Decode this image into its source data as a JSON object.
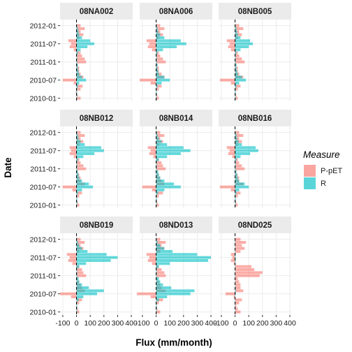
{
  "chart_data": {
    "type": "bar",
    "orientation": "horizontal",
    "facet_layout": "3x3",
    "xlabel": "Flux (mm/month)",
    "ylabel": "Date",
    "xlim": [
      -120,
      410
    ],
    "x_ticks": [
      -100,
      0,
      100,
      200,
      300,
      400
    ],
    "x_tick_labels": [
      "-100",
      "0",
      "100",
      "200",
      "300",
      "400"
    ],
    "ylim": [
      "2009-12",
      "2012-03"
    ],
    "y_ticks": [
      "2010-01",
      "2010-07",
      "2011-01",
      "2011-07",
      "2012-01"
    ],
    "y_tick_labels": [
      "2010-01",
      "2010-07",
      "2011-01",
      "2011-07",
      "2012-01"
    ],
    "vline_x": 0,
    "months": [
      "2010-01",
      "2010-02",
      "2010-03",
      "2010-04",
      "2010-05",
      "2010-06",
      "2010-07",
      "2010-08",
      "2010-09",
      "2010-10",
      "2010-11",
      "2010-12",
      "2011-01",
      "2011-02",
      "2011-03",
      "2011-04",
      "2011-05",
      "2011-06",
      "2011-07",
      "2011-08",
      "2011-09",
      "2011-10",
      "2011-11",
      "2011-12",
      "2012-01"
    ],
    "legend": {
      "title": "Measure",
      "position": "right",
      "entries": [
        {
          "name": "P-pET",
          "color": "#F8766D"
        },
        {
          "name": "R",
          "color": "#00BFC4"
        }
      ]
    },
    "grid": true,
    "panels": [
      {
        "name": "08NA002",
        "P-pET": [
          30,
          10,
          -5,
          30,
          45,
          -20,
          -100,
          50,
          30,
          20,
          20,
          10,
          70,
          60,
          40,
          30,
          -20,
          -50,
          -40,
          -60,
          20,
          50,
          30,
          60,
          30
        ],
        "R": [
          5,
          5,
          5,
          5,
          10,
          20,
          70,
          40,
          20,
          15,
          10,
          10,
          5,
          5,
          5,
          10,
          30,
          80,
          130,
          100,
          40,
          20,
          15,
          10,
          5
        ]
      },
      {
        "name": "08NA006",
        "P-pET": [
          20,
          10,
          0,
          20,
          40,
          -40,
          -120,
          60,
          40,
          20,
          20,
          10,
          70,
          50,
          30,
          20,
          -30,
          -60,
          -50,
          -70,
          20,
          50,
          30,
          60,
          30
        ],
        "R": [
          5,
          5,
          5,
          5,
          10,
          40,
          100,
          60,
          20,
          15,
          10,
          10,
          5,
          5,
          5,
          10,
          50,
          150,
          220,
          180,
          60,
          30,
          15,
          10,
          5
        ]
      },
      {
        "name": "08NB005",
        "P-pET": [
          20,
          10,
          0,
          20,
          40,
          -30,
          -110,
          60,
          30,
          20,
          20,
          10,
          70,
          50,
          30,
          20,
          -30,
          -50,
          -40,
          -60,
          20,
          50,
          30,
          60,
          30
        ],
        "R": [
          5,
          5,
          5,
          5,
          10,
          30,
          80,
          50,
          20,
          15,
          10,
          10,
          5,
          5,
          5,
          10,
          40,
          100,
          130,
          110,
          40,
          20,
          15,
          10,
          5
        ]
      },
      {
        "name": "08NB012",
        "P-pET": [
          20,
          10,
          0,
          20,
          40,
          -30,
          -100,
          60,
          30,
          30,
          20,
          10,
          70,
          50,
          30,
          20,
          -20,
          -50,
          -40,
          -50,
          20,
          50,
          30,
          60,
          30
        ],
        "R": [
          5,
          5,
          5,
          5,
          10,
          40,
          120,
          90,
          40,
          20,
          15,
          10,
          5,
          5,
          5,
          10,
          50,
          130,
          200,
          180,
          60,
          30,
          15,
          10,
          5
        ]
      },
      {
        "name": "08NB014",
        "P-pET": [
          20,
          10,
          0,
          20,
          50,
          -30,
          -100,
          60,
          40,
          30,
          20,
          10,
          70,
          50,
          40,
          20,
          -20,
          -50,
          -40,
          -60,
          20,
          50,
          30,
          60,
          30
        ],
        "R": [
          5,
          5,
          5,
          5,
          15,
          60,
          180,
          130,
          60,
          30,
          20,
          15,
          5,
          5,
          5,
          20,
          80,
          180,
          250,
          200,
          80,
          40,
          20,
          10,
          5
        ]
      },
      {
        "name": "08NB016",
        "P-pET": [
          20,
          10,
          0,
          20,
          40,
          -30,
          -110,
          60,
          30,
          30,
          20,
          10,
          70,
          50,
          30,
          20,
          -20,
          -50,
          -40,
          -60,
          20,
          50,
          30,
          60,
          30
        ],
        "R": [
          5,
          5,
          5,
          5,
          10,
          30,
          100,
          70,
          30,
          20,
          15,
          10,
          5,
          5,
          5,
          10,
          40,
          110,
          170,
          150,
          50,
          25,
          15,
          10,
          5
        ]
      },
      {
        "name": "08NB019",
        "P-pET": [
          20,
          10,
          0,
          20,
          40,
          -40,
          -120,
          60,
          40,
          30,
          20,
          10,
          70,
          50,
          40,
          20,
          -30,
          -60,
          -50,
          -70,
          20,
          50,
          30,
          60,
          30
        ],
        "R": [
          5,
          5,
          5,
          5,
          15,
          50,
          150,
          200,
          90,
          40,
          20,
          15,
          5,
          5,
          5,
          20,
          70,
          250,
          300,
          220,
          80,
          40,
          20,
          10,
          5
        ]
      },
      {
        "name": "08ND013",
        "P-pET": [
          30,
          10,
          0,
          20,
          50,
          -40,
          -140,
          70,
          40,
          30,
          20,
          10,
          70,
          60,
          40,
          20,
          -30,
          -60,
          -50,
          -70,
          30,
          60,
          40,
          70,
          30
        ],
        "R": [
          5,
          5,
          5,
          5,
          20,
          80,
          250,
          280,
          110,
          50,
          30,
          20,
          5,
          5,
          5,
          20,
          100,
          380,
          400,
          300,
          120,
          60,
          30,
          10,
          5
        ]
      },
      {
        "name": "08ND025",
        "P-pET": [
          40,
          20,
          10,
          30,
          50,
          -10,
          -70,
          60,
          40,
          40,
          30,
          20,
          180,
          200,
          140,
          120,
          -10,
          -30,
          -20,
          -30,
          40,
          70,
          50,
          80,
          40
        ],
        "R": [
          2,
          2,
          2,
          2,
          2,
          2,
          5,
          5,
          5,
          2,
          2,
          2,
          2,
          2,
          2,
          2,
          2,
          5,
          5,
          5,
          2,
          2,
          2,
          2,
          2
        ]
      }
    ]
  }
}
